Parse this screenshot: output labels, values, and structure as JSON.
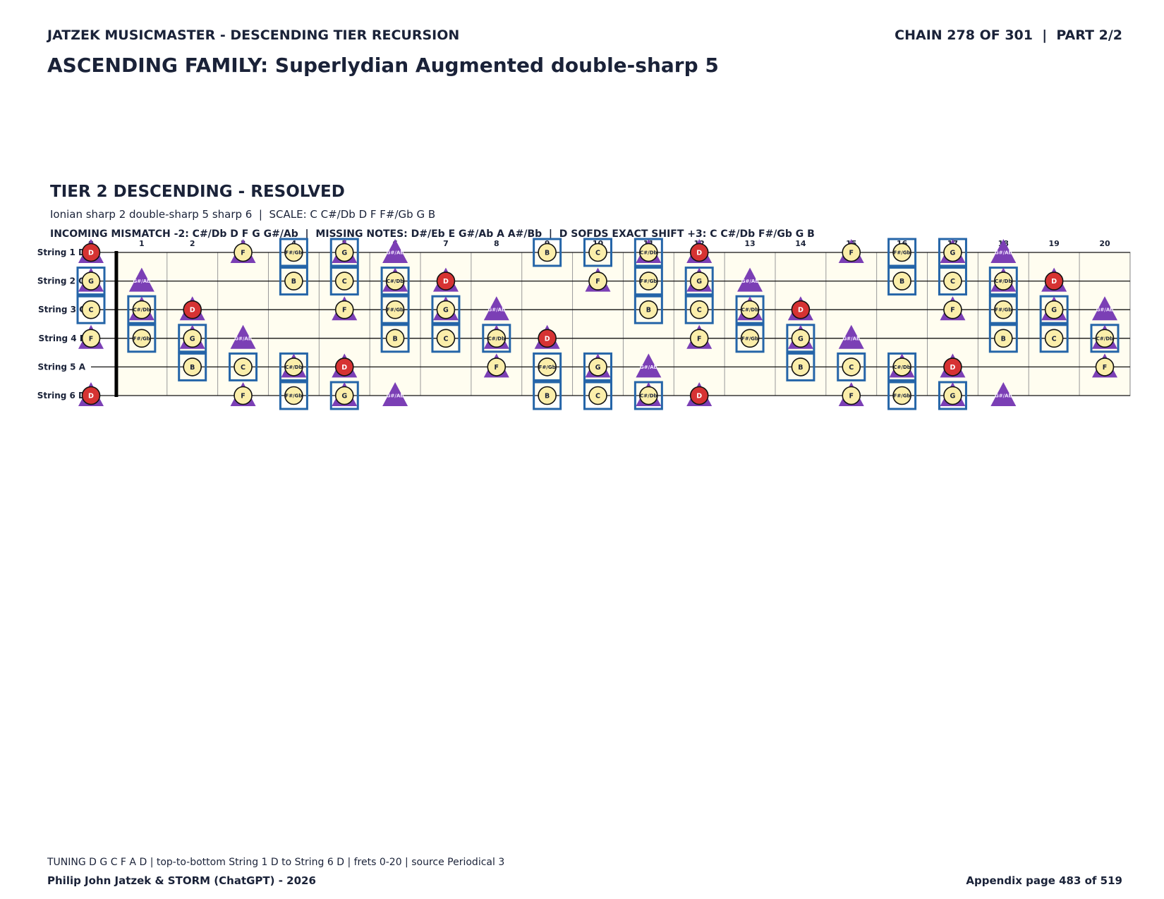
{
  "header": {
    "series_title": "JATZEK MUSICMASTER - DESCENDING TIER RECURSION",
    "chain": "CHAIN 278 OF 301  |  PART 2/2",
    "title": "ASCENDING FAMILY: Superlydian Augmented double-sharp 5"
  },
  "section": {
    "title": "TIER 2 DESCENDING - RESOLVED",
    "subtitle": "Ionian sharp 2 double-sharp 5 sharp 6  |  SCALE: C C#/Db D F F#/Gb G B",
    "info": "INCOMING MISMATCH -2: C#/Db D F G G#/Ab  |  MISSING NOTES: D#/Eb E G#/Ab A A#/Bb  |  D SOFDS EXACT SHIFT +3: C C#/Db F#/Gb G B"
  },
  "fretboard": {
    "frets": [
      0,
      1,
      2,
      3,
      4,
      5,
      6,
      7,
      8,
      9,
      10,
      11,
      12,
      13,
      14,
      15,
      16,
      17,
      18,
      19,
      20
    ],
    "chromatic": [
      "C",
      "C#/Db",
      "D",
      "D#/Eb",
      "E",
      "F",
      "F#/Gb",
      "G",
      "G#/Ab",
      "A",
      "A#/Bb",
      "B"
    ],
    "strings": [
      {
        "label": "String 1 D",
        "open": "D"
      },
      {
        "label": "String 2 G",
        "open": "G"
      },
      {
        "label": "String 3 C",
        "open": "C"
      },
      {
        "label": "String 4 F",
        "open": "F"
      },
      {
        "label": "String 5 A",
        "open": "A"
      },
      {
        "label": "String 6 D",
        "open": "D"
      }
    ],
    "root": "D",
    "scale_notes": [
      "C",
      "C#/Db",
      "D",
      "F",
      "F#/Gb",
      "G",
      "B"
    ],
    "shift_notes": [
      "C",
      "C#/Db",
      "F#/Gb",
      "G",
      "B"
    ],
    "mismatch_notes": [
      "C#/Db",
      "D",
      "F",
      "G",
      "G#/Ab"
    ],
    "colors": {
      "root": "#d63333",
      "note": "#fbeeaa",
      "shift": "#2565a8",
      "mismatch": "#7b3fb5",
      "board": "#fffdf0"
    }
  },
  "footer": {
    "note": "TUNING D G C F A D | top-to-bottom String 1 D to String 6 D | frets 0-20 | source Periodical 3",
    "credit": "Philip John Jatzek & STORM (ChatGPT) - 2026",
    "page": "Appendix page 483 of 519"
  }
}
